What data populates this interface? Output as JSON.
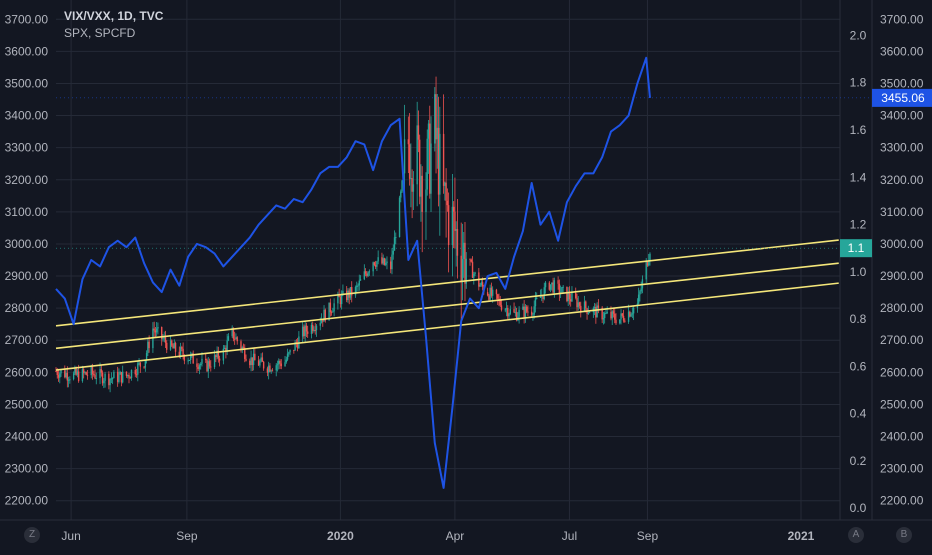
{
  "legend": {
    "main_series": "VIX/VXX, 1D, TVC",
    "overlay_series": "SPX, SPCFD"
  },
  "buttons": {
    "left": "Z",
    "right_a": "A",
    "right_b": "B"
  },
  "colors": {
    "background": "#131722",
    "grid": "#252a37",
    "spx_line": "#1e53e5",
    "candle_up": "#26a69a",
    "candle_down": "#ef5350",
    "channel": "#f4e67a",
    "price_badge": "#1e53e5",
    "ratio_badge": "#26a69a"
  },
  "chart_data": {
    "type": "line",
    "x_ticks": [
      "Jun",
      "Sep",
      "2020",
      "Apr",
      "Jul",
      "Sep",
      "2021"
    ],
    "left_axis": {
      "label": "SPX",
      "ticks": [
        2200,
        2300,
        2400,
        2500,
        2600,
        2700,
        2800,
        2900,
        3000,
        3100,
        3200,
        3300,
        3400,
        3500,
        3600,
        3700
      ],
      "range": [
        2140,
        3760
      ]
    },
    "right_axis_ratio": {
      "label": "VIX/VXX",
      "ticks": [
        0.0,
        0.2,
        0.4,
        0.6,
        0.8,
        1.0,
        1.2,
        1.4,
        1.6,
        1.8,
        2.0
      ],
      "range": [
        -0.05,
        2.15
      ]
    },
    "right_axis_spx": {
      "ticks": [
        2200,
        2300,
        2400,
        2500,
        2600,
        2700,
        2800,
        2900,
        3000,
        3100,
        3200,
        3300,
        3400,
        3500,
        3600,
        3700
      ]
    },
    "last_price_badge": "3455.06",
    "last_ratio_badge": "1.1",
    "grid": true,
    "series": [
      {
        "name": "SPX, SPCFD",
        "kind": "line",
        "points": [
          [
            "2019-05-20",
            2860
          ],
          [
            "2019-05-27",
            2830
          ],
          [
            "2019-06-03",
            2750
          ],
          [
            "2019-06-10",
            2890
          ],
          [
            "2019-06-17",
            2950
          ],
          [
            "2019-06-24",
            2930
          ],
          [
            "2019-07-01",
            2990
          ],
          [
            "2019-07-08",
            3010
          ],
          [
            "2019-07-15",
            2990
          ],
          [
            "2019-07-22",
            3020
          ],
          [
            "2019-07-29",
            2940
          ],
          [
            "2019-08-05",
            2880
          ],
          [
            "2019-08-12",
            2850
          ],
          [
            "2019-08-19",
            2920
          ],
          [
            "2019-08-26",
            2870
          ],
          [
            "2019-09-02",
            2960
          ],
          [
            "2019-09-09",
            3000
          ],
          [
            "2019-09-16",
            2990
          ],
          [
            "2019-09-23",
            2970
          ],
          [
            "2019-09-30",
            2930
          ],
          [
            "2019-10-07",
            2960
          ],
          [
            "2019-10-14",
            2990
          ],
          [
            "2019-10-21",
            3020
          ],
          [
            "2019-10-28",
            3060
          ],
          [
            "2019-11-04",
            3090
          ],
          [
            "2019-11-11",
            3120
          ],
          [
            "2019-11-18",
            3110
          ],
          [
            "2019-11-25",
            3140
          ],
          [
            "2019-12-02",
            3130
          ],
          [
            "2019-12-09",
            3170
          ],
          [
            "2019-12-16",
            3220
          ],
          [
            "2019-12-23",
            3240
          ],
          [
            "2019-12-30",
            3240
          ],
          [
            "2020-01-06",
            3270
          ],
          [
            "2020-01-13",
            3320
          ],
          [
            "2020-01-20",
            3310
          ],
          [
            "2020-01-27",
            3230
          ],
          [
            "2020-02-03",
            3320
          ],
          [
            "2020-02-10",
            3370
          ],
          [
            "2020-02-17",
            3390
          ],
          [
            "2020-02-24",
            2950
          ],
          [
            "2020-03-02",
            3010
          ],
          [
            "2020-03-09",
            2710
          ],
          [
            "2020-03-16",
            2380
          ],
          [
            "2020-03-23",
            2240
          ],
          [
            "2020-03-30",
            2490
          ],
          [
            "2020-04-06",
            2760
          ],
          [
            "2020-04-13",
            2830
          ],
          [
            "2020-04-20",
            2800
          ],
          [
            "2020-04-27",
            2900
          ],
          [
            "2020-05-04",
            2910
          ],
          [
            "2020-05-11",
            2860
          ],
          [
            "2020-05-18",
            2960
          ],
          [
            "2020-05-25",
            3040
          ],
          [
            "2020-06-01",
            3190
          ],
          [
            "2020-06-08",
            3060
          ],
          [
            "2020-06-15",
            3100
          ],
          [
            "2020-06-22",
            3010
          ],
          [
            "2020-06-29",
            3130
          ],
          [
            "2020-07-06",
            3180
          ],
          [
            "2020-07-13",
            3220
          ],
          [
            "2020-07-20",
            3220
          ],
          [
            "2020-07-27",
            3270
          ],
          [
            "2020-08-03",
            3350
          ],
          [
            "2020-08-10",
            3370
          ],
          [
            "2020-08-17",
            3400
          ],
          [
            "2020-08-24",
            3500
          ],
          [
            "2020-08-31",
            3580
          ],
          [
            "2020-09-03",
            3455.06
          ]
        ]
      },
      {
        "name": "VIX/VXX, 1D, TVC",
        "kind": "candlestick-envelope",
        "points": [
          [
            "2019-05-20",
            0.58
          ],
          [
            "2019-06-03",
            0.56
          ],
          [
            "2019-06-17",
            0.57
          ],
          [
            "2019-07-01",
            0.55
          ],
          [
            "2019-07-15",
            0.56
          ],
          [
            "2019-07-29",
            0.62
          ],
          [
            "2019-08-05",
            0.76
          ],
          [
            "2019-08-19",
            0.68
          ],
          [
            "2019-09-02",
            0.64
          ],
          [
            "2019-09-16",
            0.6
          ],
          [
            "2019-09-30",
            0.66
          ],
          [
            "2019-10-07",
            0.74
          ],
          [
            "2019-10-21",
            0.63
          ],
          [
            "2019-11-04",
            0.6
          ],
          [
            "2019-11-18",
            0.62
          ],
          [
            "2019-12-02",
            0.74
          ],
          [
            "2019-12-16",
            0.8
          ],
          [
            "2019-12-30",
            0.88
          ],
          [
            "2020-01-13",
            0.92
          ],
          [
            "2020-01-27",
            1.05
          ],
          [
            "2020-02-10",
            1.02
          ],
          [
            "2020-02-24",
            1.55
          ],
          [
            "2020-03-09",
            1.4
          ],
          [
            "2020-03-16",
            1.6
          ],
          [
            "2020-03-23",
            1.3
          ],
          [
            "2020-04-06",
            1.1
          ],
          [
            "2020-04-20",
            0.95
          ],
          [
            "2020-05-04",
            0.88
          ],
          [
            "2020-05-18",
            0.82
          ],
          [
            "2020-06-01",
            0.84
          ],
          [
            "2020-06-15",
            0.95
          ],
          [
            "2020-06-29",
            0.9
          ],
          [
            "2020-07-13",
            0.85
          ],
          [
            "2020-07-27",
            0.82
          ],
          [
            "2020-08-10",
            0.8
          ],
          [
            "2020-08-24",
            0.86
          ],
          [
            "2020-09-03",
            1.1
          ]
        ]
      }
    ],
    "channel_lines": [
      {
        "name": "upper",
        "axis": "spx",
        "from": [
          "2019-05-20",
          2745
        ],
        "to": [
          "2021-01-31",
          3012
        ]
      },
      {
        "name": "middle",
        "axis": "spx",
        "from": [
          "2019-05-20",
          2675
        ],
        "to": [
          "2021-01-31",
          2940
        ]
      },
      {
        "name": "lower",
        "axis": "spx",
        "from": [
          "2019-05-20",
          2607
        ],
        "to": [
          "2021-01-31",
          2878
        ]
      }
    ]
  }
}
